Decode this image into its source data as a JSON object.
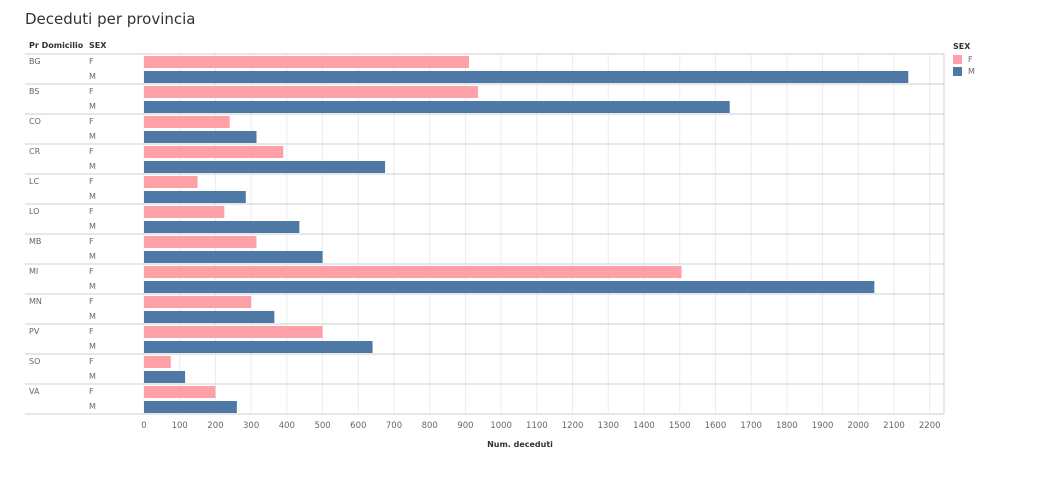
{
  "title": "Deceduti per provincia",
  "headers": {
    "province": "Pr Domicilio",
    "sex": "SEX"
  },
  "legend": {
    "title": "SEX",
    "items": [
      {
        "label": "F",
        "color": "#ffa0a8"
      },
      {
        "label": "M",
        "color": "#4e79a7"
      }
    ]
  },
  "chart_data": {
    "type": "bar",
    "orientation": "horizontal",
    "title": "Deceduti per provincia",
    "xlabel": "Num. deceduti",
    "ylabel": "",
    "xlim": [
      0,
      2240
    ],
    "xticks": [
      0,
      100,
      200,
      300,
      400,
      500,
      600,
      700,
      800,
      900,
      1000,
      1100,
      1200,
      1300,
      1400,
      1500,
      1600,
      1700,
      1800,
      1900,
      2000,
      2100,
      2200
    ],
    "grid": true,
    "legend_position": "top-right",
    "categories": [
      "BG",
      "BS",
      "CO",
      "CR",
      "LC",
      "LO",
      "MB",
      "MI",
      "MN",
      "PV",
      "SO",
      "VA"
    ],
    "series": [
      {
        "name": "F",
        "color": "#ffa0a8",
        "values": [
          910,
          935,
          240,
          390,
          150,
          225,
          315,
          1505,
          300,
          500,
          75,
          200
        ]
      },
      {
        "name": "M",
        "color": "#4e79a7",
        "values": [
          2140,
          1640,
          315,
          675,
          285,
          435,
          500,
          2045,
          365,
          640,
          115,
          260
        ]
      }
    ]
  }
}
